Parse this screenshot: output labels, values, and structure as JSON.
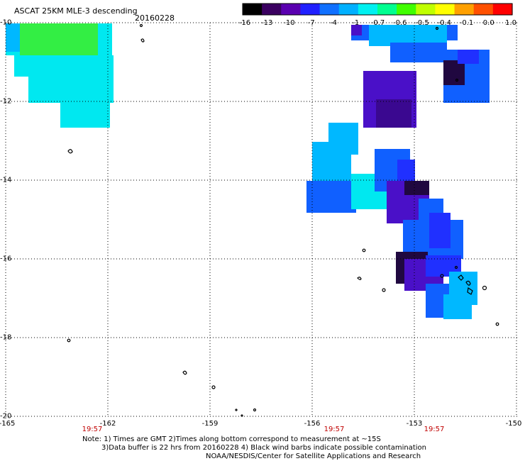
{
  "header": {
    "title": "ASCAT 25KM MLE-3 descending",
    "date": "20160228"
  },
  "colorbar": {
    "labels": [
      "-16",
      "-13",
      "-10",
      "-7",
      "-4",
      "-1",
      "-0.7",
      "-0.6",
      "-0.5",
      "-0.4",
      "-0.1",
      "0.0",
      "1.0"
    ],
    "colors": [
      "#000000",
      "#3a0060",
      "#5a00b0",
      "#2020ff",
      "#1070ff",
      "#00b0ff",
      "#00f0f0",
      "#00ff90",
      "#40ff00",
      "#c0ff00",
      "#ffff00",
      "#ffa000",
      "#ff5000",
      "#ff0000"
    ]
  },
  "axes": {
    "lat_labels": [
      "-10",
      "-12",
      "-14",
      "-16",
      "-18",
      "-20"
    ],
    "lon_labels": [
      "-165",
      "-162",
      "-159",
      "-156",
      "-153",
      "-150"
    ],
    "lat_range": [
      -20,
      -10
    ],
    "lon_range": [
      -165,
      -150
    ]
  },
  "times": [
    "19:57",
    "19:57",
    "19:57"
  ],
  "notes": [
    "Note: 1) Times are GMT 2)Times along bottom correspond to measurement at ~15S",
    "3)Data buffer is 22 hrs from 20160228 4) Black wind barbs indicate possible contamination",
    "NOAA/NESDIS/Center for Satellite Applications and Research"
  ],
  "swath_colors": {
    "green": "#33ee44",
    "cyan": "#00e8f0",
    "sky": "#00b8ff",
    "blue": "#1060ff",
    "deepblue": "#2030ff",
    "indigo": "#4a10c8",
    "purple": "#3a0890",
    "dark": "#200840"
  }
}
